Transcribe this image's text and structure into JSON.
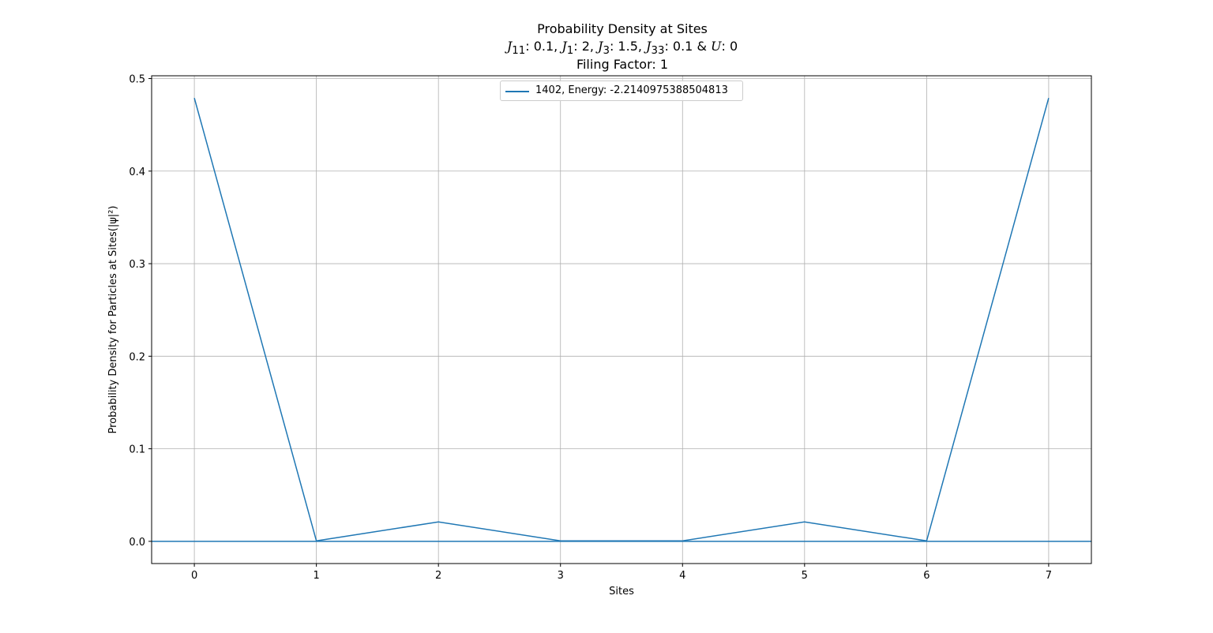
{
  "chart_data": {
    "type": "line",
    "title": "Probability Density at Sites",
    "subtitle": {
      "J11_label": "J",
      "J11_sub": "11",
      "J11_val": ": 0.1, ",
      "J1_label": "J",
      "J1_sub": "1",
      "J1_val": ": 2, ",
      "J3_label": "J",
      "J3_sub": "3",
      "J3_val": ": 1.5, ",
      "J33_label": "J",
      "J33_sub": "33",
      "J33_val": ": 0.1 & ",
      "U_label": "U",
      "U_val": ": 0"
    },
    "subtitle2": "Filing Factor: 1",
    "xlabel": "Sites",
    "ylabel": "Probability Density for Particles at Sites(|ψ|²)",
    "xlim": [
      -0.35,
      7.35
    ],
    "ylim": [
      -0.024,
      0.503
    ],
    "xticks": [
      0,
      1,
      2,
      3,
      4,
      5,
      6,
      7
    ],
    "yticks": [
      0.0,
      0.1,
      0.2,
      0.3,
      0.4,
      0.5
    ],
    "ytick_labels": [
      "0.0",
      "0.1",
      "0.2",
      "0.3",
      "0.4",
      "0.5"
    ],
    "grid": true,
    "legend_position": "upper-center",
    "hline": 0.0,
    "series": [
      {
        "name": "1402, Energy: -2.2140975388504813",
        "color": "#1f77b4",
        "x": [
          0,
          1,
          2,
          3,
          4,
          5,
          6,
          7
        ],
        "y": [
          0.479,
          0.0005,
          0.021,
          0.0005,
          0.0005,
          0.021,
          0.0005,
          0.479
        ]
      }
    ]
  }
}
